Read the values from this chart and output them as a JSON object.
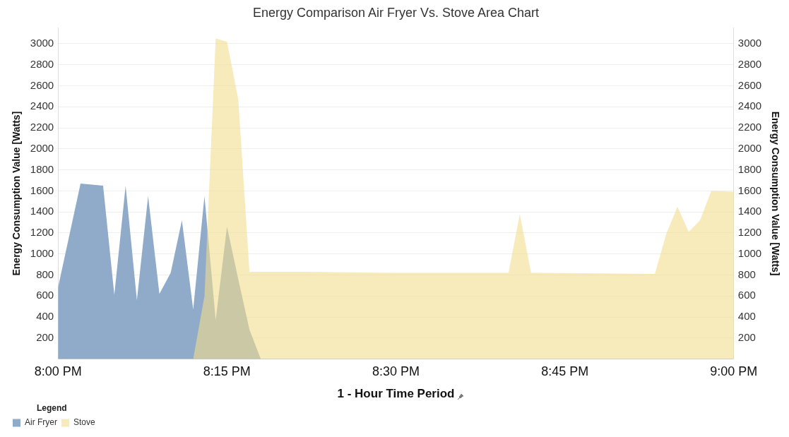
{
  "chart_data": {
    "type": "area",
    "title": "Energy Comparison Air Fryer Vs. Stove Area Chart",
    "xlabel": "1 - Hour Time Period",
    "ylabel": "Energy Consumption Value [Watts]",
    "y2label": "Energy Consumption Value [Watts]",
    "legend_title": "Legend",
    "legend": "bottom left",
    "grid": "y",
    "xlim": [
      20,
      21
    ],
    "xticks": [
      {
        "value": 20,
        "label": "8:00 PM"
      },
      {
        "value": 20.25,
        "label": "8:15 PM"
      },
      {
        "value": 20.5,
        "label": "8:30 PM"
      },
      {
        "value": 20.75,
        "label": "8:45 PM"
      },
      {
        "value": 21,
        "label": "9:00 PM"
      }
    ],
    "ylim": [
      0,
      3150
    ],
    "yticks": [
      200,
      400,
      600,
      800,
      1000,
      1200,
      1400,
      1600,
      1800,
      2000,
      2200,
      2400,
      2600,
      2800,
      3000
    ],
    "y2lim": [
      0,
      3150
    ],
    "y2ticks": [
      200,
      400,
      600,
      800,
      1000,
      1200,
      1400,
      1600,
      1800,
      2000,
      2200,
      2400,
      2600,
      2800,
      3000
    ],
    "series": [
      {
        "name": "Air Fryer",
        "color": "#8fabc9",
        "x": [
          20,
          20.0333,
          20.05,
          20.0667,
          20.0833,
          20.1,
          20.1167,
          20.1333,
          20.15,
          20.1667,
          20.1833,
          20.2,
          20.2167,
          20.2333,
          20.25,
          20.2667,
          20.2833,
          20.3
        ],
        "values": [
          680,
          1670,
          1660,
          1650,
          610,
          1650,
          560,
          1550,
          620,
          820,
          1320,
          470,
          1550,
          370,
          1260,
          760,
          280,
          0
        ]
      },
      {
        "name": "Stove",
        "color": "#f1dc8e",
        "x": [
          20.2,
          20.2167,
          20.2333,
          20.25,
          20.2667,
          20.2833,
          20.3667,
          20.5,
          20.6667,
          20.6833,
          20.7,
          20.8833,
          20.9,
          20.9167,
          20.9333,
          20.95,
          20.9667,
          21
        ],
        "values": [
          0,
          600,
          3050,
          3020,
          2470,
          830,
          830,
          820,
          820,
          1380,
          820,
          810,
          1190,
          1450,
          1210,
          1320,
          1600,
          1590
        ]
      }
    ]
  }
}
